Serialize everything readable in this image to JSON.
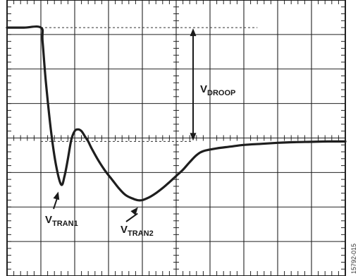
{
  "chart_data": {
    "type": "line",
    "title": "",
    "xlabel": "",
    "ylabel": "",
    "grid": true,
    "grid_divisions": {
      "x": 10,
      "y": 8
    },
    "xlim": [
      0,
      10
    ],
    "ylim": [
      -4,
      4
    ],
    "series": [
      {
        "x": [
          0.0,
          0.5,
          1.0,
          1.05,
          1.15,
          1.3,
          1.45,
          1.6,
          1.7,
          1.8,
          1.9,
          2.0,
          2.1,
          2.2,
          2.3,
          2.4,
          2.5,
          2.7,
          2.9,
          3.1,
          3.3,
          3.5,
          3.7,
          3.85,
          4.0,
          4.2,
          4.4,
          4.6,
          4.8,
          5.0,
          5.2,
          5.4,
          5.6,
          5.8,
          6.2,
          6.6,
          7.0,
          7.5,
          8.0,
          8.5,
          9.0,
          9.5,
          10.0
        ],
        "y": [
          3.2,
          3.2,
          3.2,
          2.8,
          1.6,
          0.2,
          -0.8,
          -1.35,
          -1.1,
          -0.6,
          -0.05,
          0.2,
          0.25,
          0.2,
          0.05,
          -0.1,
          -0.3,
          -0.65,
          -0.95,
          -1.2,
          -1.45,
          -1.65,
          -1.75,
          -1.8,
          -1.8,
          -1.72,
          -1.6,
          -1.45,
          -1.28,
          -1.1,
          -0.92,
          -0.7,
          -0.5,
          -0.38,
          -0.3,
          -0.25,
          -0.2,
          -0.17,
          -0.14,
          -0.12,
          -0.11,
          -0.1,
          -0.1
        ]
      }
    ],
    "reference_lines": [
      {
        "y": 3.2,
        "x_range": [
          1.0,
          7.4
        ]
      },
      {
        "y": -0.1,
        "x_range": [
          1.0,
          5.5
        ]
      }
    ],
    "annotations": [
      {
        "base": "V",
        "sub": "DROOP"
      },
      {
        "base": "V",
        "sub": "TRAN1"
      },
      {
        "base": "V",
        "sub": "TRAN2"
      }
    ],
    "figure_id": "15792-015"
  }
}
